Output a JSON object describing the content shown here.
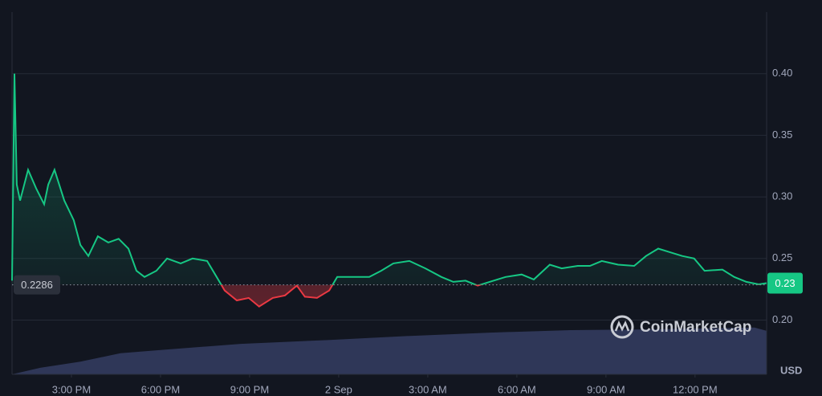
{
  "chart_data": {
    "type": "line",
    "x": [
      -11.0,
      -10.92,
      -10.84,
      -10.73,
      -10.46,
      -10.19,
      -9.92,
      -9.78,
      -9.57,
      -9.24,
      -8.92,
      -8.7,
      -8.43,
      -8.11,
      -7.76,
      -7.41,
      -7.08,
      -6.81,
      -6.54,
      -6.14,
      -5.78,
      -5.32,
      -4.92,
      -4.43,
      -4.11,
      -3.84,
      -3.43,
      -3.03,
      -2.68,
      -2.22,
      -1.81,
      -1.41,
      -1.14,
      -0.73,
      -0.32,
      -0.05,
      0.49,
      1.03,
      1.43,
      1.84,
      2.38,
      2.92,
      3.46,
      3.86,
      4.27,
      4.68,
      5.08,
      5.62,
      6.16,
      6.57,
      7.11,
      7.51,
      8.05,
      8.46,
      8.86,
      9.41,
      9.95,
      10.35,
      10.76,
      11.16,
      11.57,
      11.97,
      12.32,
      12.92,
      13.32,
      13.73,
      14.14,
      14.41
    ],
    "values": [
      0.232,
      0.4,
      0.31,
      0.297,
      0.322,
      0.307,
      0.294,
      0.31,
      0.322,
      0.297,
      0.281,
      0.261,
      0.252,
      0.268,
      0.263,
      0.266,
      0.258,
      0.24,
      0.235,
      0.24,
      0.25,
      0.246,
      0.25,
      0.248,
      0.235,
      0.224,
      0.216,
      0.218,
      0.211,
      0.218,
      0.22,
      0.228,
      0.219,
      0.218,
      0.224,
      0.235,
      0.235,
      0.235,
      0.24,
      0.246,
      0.248,
      0.242,
      0.235,
      0.231,
      0.232,
      0.228,
      0.231,
      0.235,
      0.237,
      0.233,
      0.245,
      0.242,
      0.244,
      0.244,
      0.248,
      0.245,
      0.244,
      0.252,
      0.258,
      0.255,
      0.252,
      0.25,
      0.24,
      0.241,
      0.235,
      0.231,
      0.229,
      0.23
    ],
    "up_color": "#16c784",
    "down_color": "#ea3943",
    "baseline": 0.2286,
    "current_price": 0.23,
    "xlim": [
      -11,
      14.41
    ],
    "xticks": [
      {
        "value": -9,
        "label": "3:00 PM"
      },
      {
        "value": -6,
        "label": "6:00 PM"
      },
      {
        "value": -3,
        "label": "9:00 PM"
      },
      {
        "value": 0,
        "label": "2 Sep"
      },
      {
        "value": 3,
        "label": "3:00 AM"
      },
      {
        "value": 6,
        "label": "6:00 AM"
      },
      {
        "value": 9,
        "label": "9:00 AM"
      },
      {
        "value": 12,
        "label": "12:00 PM"
      }
    ],
    "ylim": [
      0.156,
      0.45
    ],
    "yticks": [
      {
        "value": 0.2,
        "label": "0.20"
      },
      {
        "value": 0.25,
        "label": "0.25"
      },
      {
        "value": 0.3,
        "label": "0.30"
      },
      {
        "value": 0.35,
        "label": "0.35"
      },
      {
        "value": 0.4,
        "label": "0.40"
      }
    ],
    "y_unit": "USD",
    "grid": true,
    "watermark": "CoinMarketCap",
    "volume": {
      "type": "area",
      "color": "#353d63",
      "x": [
        -11,
        -10.05,
        -8.7,
        -7.35,
        -6,
        -3.3,
        -0.3,
        2.4,
        5.1,
        7.8,
        10.5,
        14.0,
        14.41
      ],
      "values": [
        0,
        1.8,
        3.5,
        5.8,
        6.7,
        8.4,
        9.5,
        10.6,
        11.5,
        12.2,
        12.4,
        12.9,
        12.0
      ],
      "ylim": [
        0,
        100
      ]
    }
  }
}
